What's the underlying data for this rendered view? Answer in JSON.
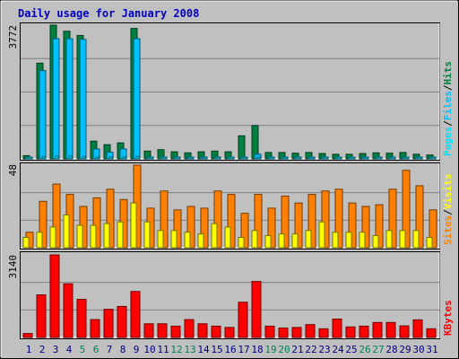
{
  "chart_data": [
    {
      "type": "bar",
      "panel": "hits-files-pages",
      "title": "Daily usage for January 2008",
      "categories": [
        "1",
        "2",
        "3",
        "4",
        "5",
        "6",
        "7",
        "8",
        "9",
        "10",
        "11",
        "12",
        "13",
        "14",
        "15",
        "16",
        "17",
        "18",
        "19",
        "20",
        "21",
        "22",
        "23",
        "24",
        "25",
        "26",
        "27",
        "28",
        "29",
        "30",
        "31"
      ],
      "ymax_label": "3772",
      "ylim": [
        0,
        3772
      ],
      "series": [
        {
          "name": "Hits",
          "color": "#008040",
          "values": [
            90,
            2700,
            3772,
            3600,
            3480,
            500,
            400,
            450,
            3680,
            220,
            260,
            200,
            170,
            200,
            220,
            200,
            650,
            940,
            180,
            180,
            160,
            180,
            150,
            130,
            130,
            150,
            170,
            160,
            180,
            130,
            110
          ]
        },
        {
          "name": "Files",
          "color": "#00c0ff",
          "values": [
            40,
            2490,
            3390,
            3390,
            3370,
            280,
            190,
            280,
            3390,
            50,
            40,
            40,
            30,
            40,
            40,
            40,
            40,
            130,
            30,
            30,
            30,
            30,
            30,
            30,
            30,
            30,
            30,
            30,
            30,
            30,
            30
          ]
        },
        {
          "name": "Pages",
          "color": "#00e0ff",
          "values": [
            30,
            60,
            80,
            80,
            70,
            40,
            30,
            40,
            70,
            20,
            20,
            20,
            20,
            20,
            20,
            20,
            20,
            40,
            20,
            20,
            20,
            20,
            20,
            20,
            20,
            20,
            20,
            20,
            20,
            20,
            20
          ]
        }
      ],
      "legend": [
        "Pages",
        "/",
        "Files",
        "/",
        "Hits"
      ]
    },
    {
      "type": "bar",
      "panel": "visits-sites",
      "categories": [
        "1",
        "2",
        "3",
        "4",
        "5",
        "6",
        "7",
        "8",
        "9",
        "10",
        "11",
        "12",
        "13",
        "14",
        "15",
        "16",
        "17",
        "18",
        "19",
        "20",
        "21",
        "22",
        "23",
        "24",
        "25",
        "26",
        "27",
        "28",
        "29",
        "30",
        "31"
      ],
      "ymax_label": "48",
      "ylim": [
        0,
        48
      ],
      "series": [
        {
          "name": "Visits",
          "color": "#ff8000",
          "values": [
            9,
            27,
            37,
            31,
            24,
            29,
            34,
            28,
            48,
            23,
            33,
            22,
            24,
            23,
            33,
            31,
            20,
            31,
            23,
            30,
            26,
            31,
            33,
            34,
            26,
            24,
            25,
            34,
            45,
            36,
            22
          ]
        },
        {
          "name": "Sites",
          "color": "#ffff00",
          "values": [
            6,
            9,
            12,
            19,
            13,
            13,
            14,
            15,
            26,
            15,
            10,
            10,
            9,
            8,
            14,
            12,
            6,
            10,
            7,
            8,
            8,
            10,
            15,
            9,
            9,
            9,
            7,
            10,
            10,
            10,
            6
          ]
        }
      ],
      "legend": [
        "Sites",
        "/",
        "Visits"
      ]
    },
    {
      "type": "bar",
      "panel": "kbytes",
      "categories": [
        "1",
        "2",
        "3",
        "4",
        "5",
        "6",
        "7",
        "8",
        "9",
        "10",
        "11",
        "12",
        "13",
        "14",
        "15",
        "16",
        "17",
        "18",
        "19",
        "20",
        "21",
        "22",
        "23",
        "24",
        "25",
        "26",
        "27",
        "28",
        "29",
        "30",
        "31"
      ],
      "ymax_label": "3140",
      "ylim": [
        0,
        3140
      ],
      "series": [
        {
          "name": "KBytes",
          "color": "#ff0000",
          "values": [
            150,
            1620,
            3140,
            2040,
            1450,
            680,
            1070,
            1180,
            1750,
            520,
            520,
            430,
            680,
            520,
            430,
            380,
            1340,
            2130,
            430,
            360,
            380,
            490,
            330,
            700,
            400,
            430,
            570,
            570,
            440,
            670,
            330
          ]
        }
      ],
      "legend": [
        "KBytes"
      ]
    }
  ],
  "x_label_colors": {
    "weekday": "#000080",
    "weekend": "#00805c",
    "weekend_days": [
      "5",
      "6",
      "12",
      "13",
      "19",
      "20",
      "26",
      "27"
    ]
  }
}
